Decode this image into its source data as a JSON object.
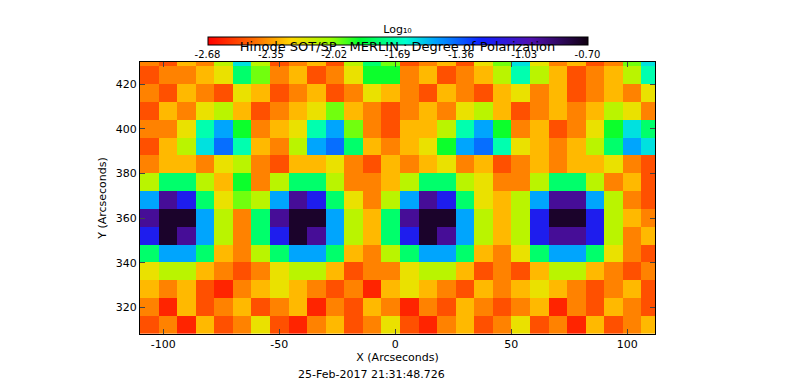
{
  "chart_data": {
    "type": "heatmap",
    "title": "Hinode SOT/SP - MERLIN : Degree of Polarization",
    "annotations": [
      "25-Feb-2017 21:31:48.726"
    ],
    "x_label": "X (Arcseconds)",
    "y_label": "Y (Arcseconds)",
    "x": [
      -106,
      -98,
      -90,
      -82,
      -74,
      -66,
      -58,
      -50,
      -42,
      -34,
      -26,
      -18,
      -10,
      -2,
      6,
      14,
      22,
      30,
      38,
      46,
      54,
      62,
      70,
      78,
      86,
      94,
      102,
      110
    ],
    "y": [
      312,
      320,
      328,
      336,
      344,
      352,
      360,
      368,
      376,
      384,
      392,
      400,
      408,
      416,
      424,
      432
    ],
    "cells": [
      [
        -2.5,
        -2.4,
        -2.6,
        -2.3,
        -2.5,
        -2.4,
        -2.2,
        -2.5,
        -2.6,
        -2.4,
        -2.3,
        -2.5,
        -2.4,
        -2.2,
        -2.5,
        -2.6,
        -2.4,
        -2.3,
        -2.5,
        -2.4,
        -2.2,
        -2.5,
        -2.4,
        -2.6,
        -2.3,
        -2.5,
        -2.4,
        -2.3
      ],
      [
        -2.4,
        -2.6,
        -2.3,
        -2.5,
        -2.4,
        -2.3,
        -2.5,
        -2.4,
        -2.3,
        -2.6,
        -2.4,
        -2.5,
        -2.3,
        -2.4,
        -2.6,
        -2.4,
        -2.5,
        -2.3,
        -2.4,
        -2.5,
        -2.4,
        -2.3,
        -2.6,
        -2.4,
        -2.5,
        -2.3,
        -2.4,
        -2.5
      ],
      [
        -2.3,
        -2.4,
        -2.3,
        -2.5,
        -2.6,
        -2.4,
        -2.3,
        -2.2,
        -2.3,
        -2.4,
        -2.5,
        -2.4,
        -2.6,
        -2.3,
        -2.2,
        -2.3,
        -2.4,
        -2.5,
        -2.3,
        -2.4,
        -2.3,
        -2.2,
        -2.3,
        -2.4,
        -2.5,
        -2.4,
        -2.3,
        -2.5
      ],
      [
        -2.2,
        -2.1,
        -2.1,
        -2.3,
        -2.4,
        -2.5,
        -2.4,
        -2.2,
        -2.1,
        -2.1,
        -2.3,
        -2.5,
        -2.4,
        -2.4,
        -2.2,
        -2.1,
        -2.1,
        -2.3,
        -2.5,
        -2.4,
        -2.5,
        -2.3,
        -2.1,
        -2.1,
        -2.3,
        -2.4,
        -2.5,
        -2.4
      ],
      [
        -1.8,
        -1.5,
        -1.5,
        -1.8,
        -2.3,
        -2.4,
        -2.1,
        -1.8,
        -1.5,
        -1.5,
        -1.8,
        -2.3,
        -2.4,
        -2.1,
        -1.8,
        -1.5,
        -1.5,
        -1.8,
        -2.3,
        -2.4,
        -2.2,
        -1.8,
        -1.5,
        -1.5,
        -1.8,
        -2.2,
        -2.4,
        -2.5
      ],
      [
        -1.2,
        -0.75,
        -0.95,
        -1.5,
        -2.1,
        -2.4,
        -1.8,
        -1.2,
        -0.75,
        -0.95,
        -1.5,
        -2.1,
        -2.3,
        -1.8,
        -1.2,
        -0.75,
        -0.95,
        -1.5,
        -2.1,
        -2.3,
        -2.1,
        -1.2,
        -0.95,
        -0.95,
        -1.2,
        -2.1,
        -2.4,
        -2.3
      ],
      [
        -0.95,
        -0.75,
        -0.75,
        -1.5,
        -2.1,
        -2.4,
        -1.8,
        -0.95,
        -0.75,
        -0.75,
        -1.5,
        -2.1,
        -2.3,
        -1.8,
        -0.95,
        -0.75,
        -0.75,
        -1.5,
        -2.1,
        -2.3,
        -2.1,
        -1.2,
        -0.75,
        -0.75,
        -1.2,
        -2.1,
        -2.3,
        -2.4
      ],
      [
        -1.5,
        -0.95,
        -1.2,
        -1.8,
        -2.2,
        -2.0,
        -2.1,
        -1.5,
        -0.95,
        -1.2,
        -1.8,
        -2.2,
        -2.4,
        -2.1,
        -1.5,
        -0.95,
        -1.2,
        -1.8,
        -2.2,
        -2.3,
        -2.1,
        -1.5,
        -0.95,
        -0.95,
        -1.5,
        -2.1,
        -2.4,
        -2.5
      ],
      [
        -2.1,
        -1.8,
        -1.8,
        -2.1,
        -2.3,
        -1.9,
        -2.4,
        -2.1,
        -1.8,
        -1.8,
        -2.1,
        -2.4,
        -2.4,
        -2.3,
        -2.1,
        -1.8,
        -1.8,
        -2.1,
        -2.2,
        -2.4,
        -2.4,
        -2.1,
        -1.8,
        -1.8,
        -2.1,
        -2.4,
        -2.3,
        -2.5
      ],
      [
        -2.4,
        -2.3,
        -2.3,
        -2.4,
        -2.2,
        -2.1,
        -2.4,
        -2.5,
        -2.3,
        -2.3,
        -2.2,
        -2.4,
        -2.5,
        -2.3,
        -2.4,
        -2.3,
        -2.2,
        -2.4,
        -2.3,
        -2.5,
        -2.4,
        -2.3,
        -2.4,
        -2.3,
        -2.3,
        -2.2,
        -2.4,
        -2.5
      ],
      [
        -2.5,
        -2.3,
        -2.1,
        -1.6,
        -1.4,
        -1.7,
        -2.3,
        -2.4,
        -2.1,
        -1.5,
        -1.4,
        -1.8,
        -2.3,
        -2.4,
        -2.3,
        -2.2,
        -1.9,
        -1.5,
        -1.4,
        -1.7,
        -2.2,
        -2.3,
        -2.4,
        -2.3,
        -2.1,
        -1.8,
        -1.5,
        -1.6
      ],
      [
        -2.4,
        -2.4,
        -2.2,
        -1.7,
        -1.5,
        -1.9,
        -2.4,
        -2.3,
        -2.2,
        -1.7,
        -1.5,
        -2.0,
        -2.4,
        -2.5,
        -2.3,
        -2.3,
        -2.1,
        -1.7,
        -1.5,
        -1.9,
        -2.4,
        -2.3,
        -2.5,
        -2.4,
        -2.2,
        -1.9,
        -1.6,
        -1.8
      ],
      [
        -2.5,
        -2.3,
        -2.4,
        -2.2,
        -2.1,
        -2.3,
        -2.5,
        -2.4,
        -2.3,
        -2.2,
        -2.0,
        -2.3,
        -2.4,
        -2.5,
        -2.4,
        -2.3,
        -2.4,
        -2.2,
        -2.1,
        -2.3,
        -2.5,
        -2.4,
        -2.3,
        -2.4,
        -2.3,
        -2.1,
        -2.2,
        -2.4
      ],
      [
        -2.4,
        -2.5,
        -2.3,
        -2.4,
        -2.5,
        -2.2,
        -2.3,
        -2.5,
        -2.4,
        -2.3,
        -2.5,
        -2.4,
        -2.2,
        -2.3,
        -2.4,
        -2.5,
        -2.3,
        -2.4,
        -2.5,
        -2.3,
        -2.2,
        -2.4,
        -2.3,
        -2.5,
        -2.4,
        -2.3,
        -2.4,
        -2.2
      ],
      [
        -2.5,
        -2.4,
        -2.4,
        -2.3,
        -2.2,
        -1.8,
        -2.0,
        -2.4,
        -2.3,
        -2.5,
        -2.4,
        -2.2,
        -1.9,
        -1.9,
        -2.4,
        -2.3,
        -2.5,
        -2.4,
        -2.3,
        -2.1,
        -1.7,
        -2.1,
        -2.3,
        -2.5,
        -2.4,
        -2.3,
        -2.1,
        -1.7
      ],
      [
        -2.4,
        -2.5,
        -2.3,
        -2.4,
        -2.1,
        -1.6,
        -2.1,
        -2.5,
        -2.4,
        -2.3,
        -2.5,
        -2.1,
        -1.8,
        -2.0,
        -2.5,
        -2.4,
        -2.3,
        -2.5,
        -2.2,
        -2.0,
        -1.6,
        -2.2,
        -2.4,
        -2.3,
        -2.5,
        -2.4,
        -2.0,
        -1.6
      ]
    ],
    "xlim": [
      -110,
      112
    ],
    "ylim": [
      308,
      430
    ],
    "xticks": [
      -100,
      -50,
      0,
      50,
      100
    ],
    "yticks": [
      320,
      340,
      360,
      380,
      400,
      420
    ],
    "colorbar_label": "Log₁₀",
    "colorbar_range": [
      -2.68,
      -0.7
    ],
    "colorbar_ticks": [
      -2.68,
      -2.35,
      -2.02,
      -1.69,
      -1.36,
      -1.03,
      {
        "value": -0.7,
        "label": "-0.70"
      }
    ],
    "grid": false
  }
}
